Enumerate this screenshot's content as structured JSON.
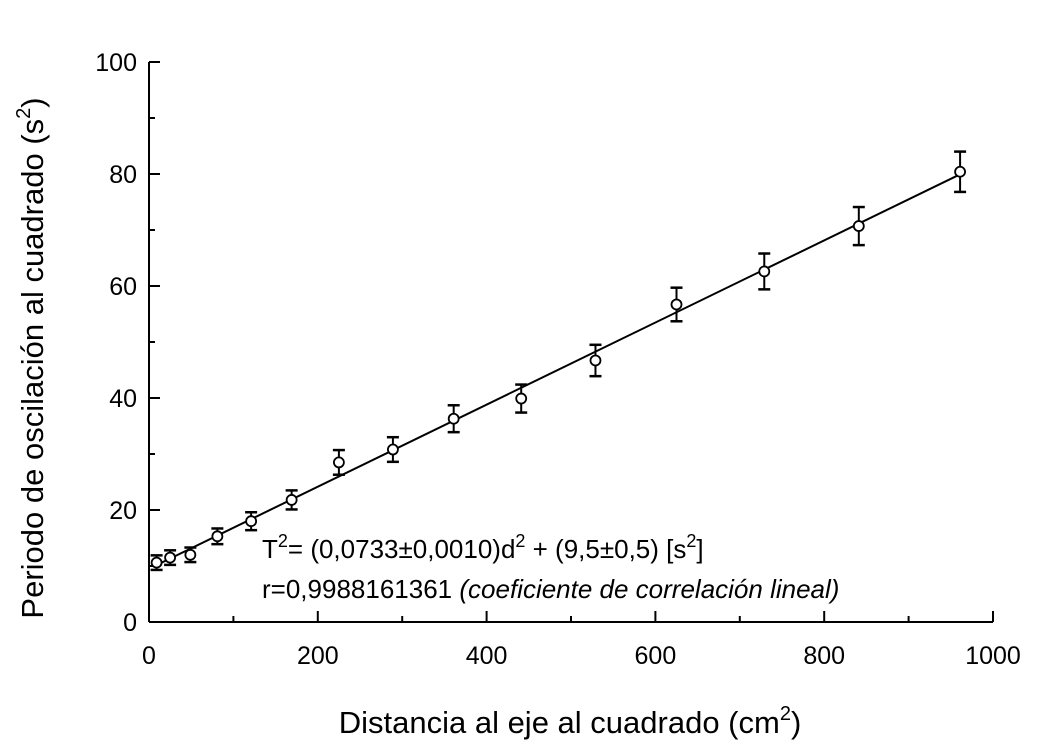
{
  "chart_data": {
    "type": "scatter",
    "xlabel": "Distancia al eje al cuadrado (cm",
    "xlabel_sup": "2",
    "xlabel_close": ")",
    "ylabel": "Periodo de oscilación al cuadrado (s",
    "ylabel_sup": "2",
    "ylabel_close": ")",
    "xlim": [
      0,
      1000
    ],
    "ylim": [
      0,
      100
    ],
    "x_ticks": [
      0,
      200,
      400,
      600,
      800,
      1000
    ],
    "x_tick_labels": [
      "0",
      "200",
      "400",
      "600",
      "800",
      "1000"
    ],
    "x_minor_ticks": [
      100,
      300,
      500,
      700,
      900
    ],
    "y_ticks": [
      0,
      20,
      40,
      60,
      80,
      100
    ],
    "y_tick_labels": [
      "0",
      "20",
      "40",
      "60",
      "80",
      "100"
    ],
    "y_minor_ticks": [
      10,
      30,
      50,
      70,
      90
    ],
    "grid": false,
    "points": [
      {
        "x": 9,
        "y": 10.6,
        "err": 1.3
      },
      {
        "x": 25,
        "y": 11.5,
        "err": 1.3
      },
      {
        "x": 49,
        "y": 12.0,
        "err": 1.3
      },
      {
        "x": 81,
        "y": 15.3,
        "err": 1.4
      },
      {
        "x": 121,
        "y": 18.0,
        "err": 1.6
      },
      {
        "x": 169,
        "y": 21.8,
        "err": 1.7
      },
      {
        "x": 225,
        "y": 28.5,
        "err": 2.2
      },
      {
        "x": 289,
        "y": 30.8,
        "err": 2.2
      },
      {
        "x": 361,
        "y": 36.3,
        "err": 2.4
      },
      {
        "x": 441,
        "y": 39.9,
        "err": 2.5
      },
      {
        "x": 529,
        "y": 46.7,
        "err": 2.8
      },
      {
        "x": 625,
        "y": 56.7,
        "err": 3.0
      },
      {
        "x": 729,
        "y": 62.6,
        "err": 3.2
      },
      {
        "x": 841,
        "y": 70.7,
        "err": 3.4
      },
      {
        "x": 961,
        "y": 80.4,
        "err": 3.6
      }
    ],
    "fit": {
      "slope": 0.0733,
      "intercept": 9.5,
      "x_start": 5,
      "x_end": 961
    },
    "annotation": {
      "eq_T": "T",
      "eq_sup1": "2",
      "eq_mid": "= (0,0733±0,0010)d",
      "eq_sup2": "2",
      "eq_mid2": " + (9,5±0,5) [s",
      "eq_sup3": "2",
      "eq_end": "]",
      "r_text": "r=0,9988161361 ",
      "r_note": "(coeficiente de correlación lineal)"
    }
  }
}
